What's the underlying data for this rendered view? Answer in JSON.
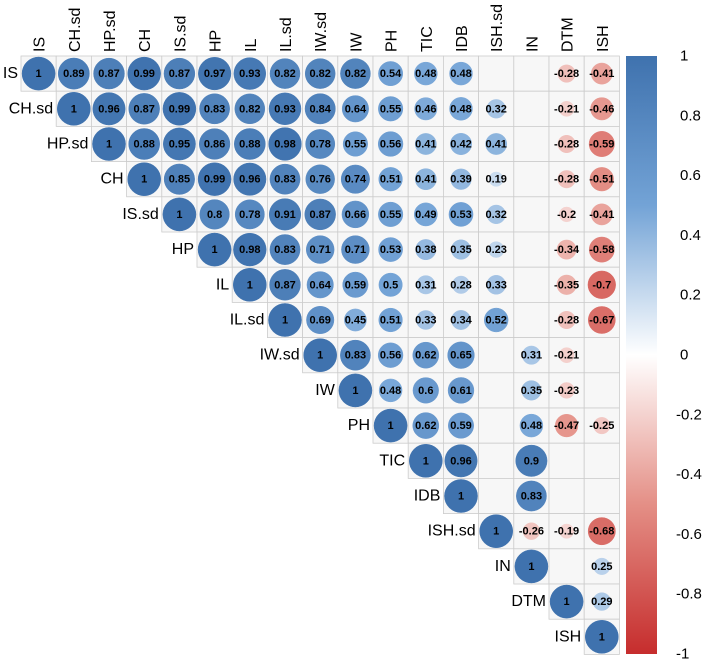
{
  "chart_data": {
    "type": "correlation-matrix",
    "shape": "upper-triangle-circles",
    "variables": [
      "IS",
      "CH.sd",
      "HP.sd",
      "CH",
      "IS.sd",
      "HP",
      "IL",
      "IL.sd",
      "IW.sd",
      "IW",
      "PH",
      "TIC",
      "IDB",
      "ISH.sd",
      "IN",
      "DTM",
      "ISH"
    ],
    "matrix": [
      [
        1,
        0.89,
        0.87,
        0.99,
        0.87,
        0.97,
        0.93,
        0.82,
        0.82,
        0.82,
        0.54,
        0.48,
        0.48,
        null,
        null,
        -0.28,
        -0.41
      ],
      [
        null,
        1,
        0.96,
        0.87,
        0.99,
        0.83,
        0.82,
        0.93,
        0.84,
        0.64,
        0.55,
        0.46,
        0.48,
        0.32,
        null,
        -0.21,
        -0.46
      ],
      [
        null,
        null,
        1,
        0.88,
        0.95,
        0.86,
        0.88,
        0.98,
        0.78,
        0.55,
        0.56,
        0.41,
        0.42,
        0.41,
        null,
        -0.28,
        -0.59
      ],
      [
        null,
        null,
        null,
        1,
        0.85,
        0.99,
        0.96,
        0.83,
        0.76,
        0.74,
        0.51,
        0.41,
        0.39,
        0.19,
        null,
        -0.28,
        -0.51
      ],
      [
        null,
        null,
        null,
        null,
        1,
        0.8,
        0.78,
        0.91,
        0.87,
        0.66,
        0.55,
        0.49,
        0.53,
        0.32,
        null,
        -0.2,
        -0.41
      ],
      [
        null,
        null,
        null,
        null,
        null,
        1,
        0.98,
        0.83,
        0.71,
        0.71,
        0.53,
        0.38,
        0.35,
        0.23,
        null,
        -0.34,
        -0.58
      ],
      [
        null,
        null,
        null,
        null,
        null,
        null,
        1,
        0.87,
        0.64,
        0.59,
        0.5,
        0.31,
        0.28,
        0.33,
        null,
        -0.35,
        -0.7
      ],
      [
        null,
        null,
        null,
        null,
        null,
        null,
        null,
        1,
        0.69,
        0.45,
        0.51,
        0.33,
        0.34,
        0.52,
        null,
        -0.28,
        -0.67
      ],
      [
        null,
        null,
        null,
        null,
        null,
        null,
        null,
        null,
        1,
        0.83,
        0.56,
        0.62,
        0.65,
        null,
        0.31,
        -0.21,
        null
      ],
      [
        null,
        null,
        null,
        null,
        null,
        null,
        null,
        null,
        null,
        1,
        0.48,
        0.6,
        0.61,
        null,
        0.35,
        -0.23,
        null
      ],
      [
        null,
        null,
        null,
        null,
        null,
        null,
        null,
        null,
        null,
        null,
        1,
        0.62,
        0.59,
        null,
        0.48,
        -0.47,
        -0.25
      ],
      [
        null,
        null,
        null,
        null,
        null,
        null,
        null,
        null,
        null,
        null,
        null,
        1,
        0.96,
        null,
        0.9,
        null,
        null
      ],
      [
        null,
        null,
        null,
        null,
        null,
        null,
        null,
        null,
        null,
        null,
        null,
        null,
        1,
        null,
        0.83,
        null,
        null
      ],
      [
        null,
        null,
        null,
        null,
        null,
        null,
        null,
        null,
        null,
        null,
        null,
        null,
        null,
        1,
        -0.26,
        -0.19,
        -0.68
      ],
      [
        null,
        null,
        null,
        null,
        null,
        null,
        null,
        null,
        null,
        null,
        null,
        null,
        null,
        null,
        1,
        null,
        0.25
      ],
      [
        null,
        null,
        null,
        null,
        null,
        null,
        null,
        null,
        null,
        null,
        null,
        null,
        null,
        null,
        null,
        1,
        0.29
      ],
      [
        null,
        null,
        null,
        null,
        null,
        null,
        null,
        null,
        null,
        null,
        null,
        null,
        null,
        null,
        null,
        null,
        1
      ]
    ],
    "colorbar": {
      "range": [
        -1,
        1
      ],
      "ticks": [
        "1",
        "0.8",
        "0.6",
        "0.4",
        "0.2",
        "0",
        "-0.2",
        "-0.4",
        "-0.6",
        "-0.8",
        "-1"
      ],
      "colors": {
        "negative_end": "#c62d2d",
        "neg_mid": "#e48f86",
        "zero": "#ffffff",
        "pos_mid": "#73a3d6",
        "positive_end": "#3f72ae"
      }
    }
  }
}
